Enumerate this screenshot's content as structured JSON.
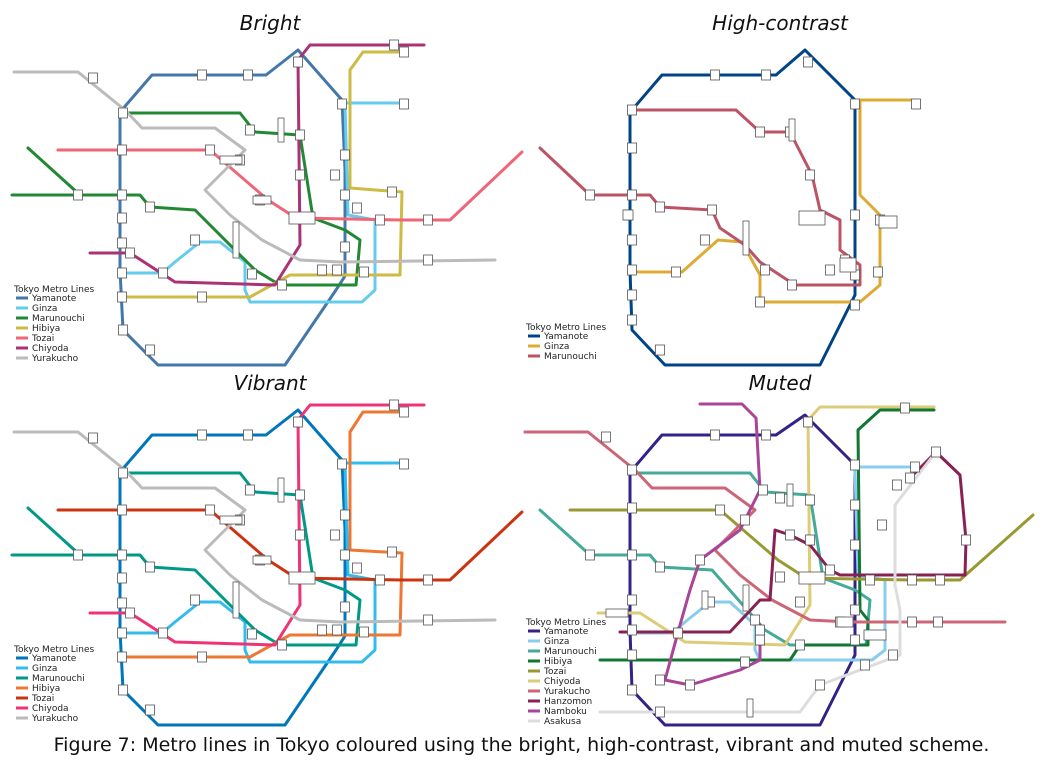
{
  "caption": "Figure 7: Metro lines in Tokyo coloured using the bright, high-contrast, vibrant and muted scheme.",
  "legend_title": "Tokyo Metro Lines",
  "panels": [
    {
      "title": "Bright",
      "lines": [
        {
          "name": "Yamanote",
          "color": "#4477AA"
        },
        {
          "name": "Ginza",
          "color": "#66CCEE"
        },
        {
          "name": "Marunouchi",
          "color": "#228833"
        },
        {
          "name": "Hibiya",
          "color": "#CCBB44"
        },
        {
          "name": "Tozai",
          "color": "#EE6677"
        },
        {
          "name": "Chiyoda",
          "color": "#AA3377"
        },
        {
          "name": "Yurakucho",
          "color": "#BBBBBB"
        }
      ]
    },
    {
      "title": "High-contrast",
      "lines": [
        {
          "name": "Yamanote",
          "color": "#004488"
        },
        {
          "name": "Ginza",
          "color": "#DDAA33"
        },
        {
          "name": "Marunouchi",
          "color": "#BB5566"
        }
      ]
    },
    {
      "title": "Vibrant",
      "lines": [
        {
          "name": "Yamanote",
          "color": "#0077BB"
        },
        {
          "name": "Ginza",
          "color": "#33BBEE"
        },
        {
          "name": "Marunouchi",
          "color": "#009988"
        },
        {
          "name": "Hibiya",
          "color": "#EE7733"
        },
        {
          "name": "Tozai",
          "color": "#CC3311"
        },
        {
          "name": "Chiyoda",
          "color": "#EE3377"
        },
        {
          "name": "Yurakucho",
          "color": "#BBBBBB"
        }
      ]
    },
    {
      "title": "Muted",
      "lines": [
        {
          "name": "Yamanote",
          "color": "#332288"
        },
        {
          "name": "Ginza",
          "color": "#88CCEE"
        },
        {
          "name": "Marunouchi",
          "color": "#44AA99"
        },
        {
          "name": "Hibiya",
          "color": "#117733"
        },
        {
          "name": "Tozai",
          "color": "#999933"
        },
        {
          "name": "Chiyoda",
          "color": "#DDCC77"
        },
        {
          "name": "Yurakucho",
          "color": "#CC6677"
        },
        {
          "name": "Hanzomon",
          "color": "#882255"
        },
        {
          "name": "Namboku",
          "color": "#AA4499"
        },
        {
          "name": "Asakusa",
          "color": "#DDDDDD"
        }
      ]
    }
  ]
}
